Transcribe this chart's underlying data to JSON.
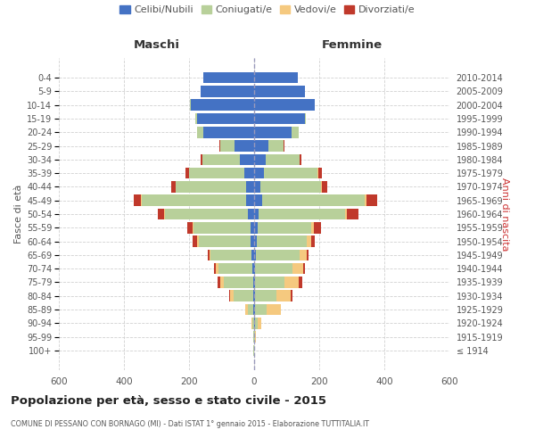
{
  "age_groups": [
    "100+",
    "95-99",
    "90-94",
    "85-89",
    "80-84",
    "75-79",
    "70-74",
    "65-69",
    "60-64",
    "55-59",
    "50-54",
    "45-49",
    "40-44",
    "35-39",
    "30-34",
    "25-29",
    "20-24",
    "15-19",
    "10-14",
    "5-9",
    "0-4"
  ],
  "birth_years": [
    "≤ 1914",
    "1915-1919",
    "1920-1924",
    "1925-1929",
    "1930-1934",
    "1935-1939",
    "1940-1944",
    "1945-1949",
    "1950-1954",
    "1955-1959",
    "1960-1964",
    "1965-1969",
    "1970-1974",
    "1975-1979",
    "1980-1984",
    "1985-1989",
    "1990-1994",
    "1995-1999",
    "2000-2004",
    "2005-2009",
    "2010-2014"
  ],
  "males": {
    "celibi": [
      1,
      1,
      1,
      2,
      3,
      4,
      5,
      8,
      10,
      12,
      20,
      25,
      25,
      30,
      45,
      60,
      155,
      175,
      195,
      165,
      155
    ],
    "coniugati": [
      1,
      2,
      5,
      18,
      60,
      90,
      105,
      125,
      160,
      175,
      255,
      320,
      215,
      170,
      115,
      45,
      20,
      5,
      2,
      0,
      0
    ],
    "vedovi": [
      0,
      0,
      2,
      8,
      10,
      10,
      8,
      5,
      4,
      3,
      2,
      2,
      1,
      0,
      0,
      0,
      0,
      0,
      0,
      0,
      0
    ],
    "divorziati": [
      0,
      0,
      0,
      0,
      5,
      8,
      5,
      5,
      15,
      15,
      20,
      22,
      15,
      10,
      5,
      2,
      0,
      0,
      0,
      0,
      0
    ]
  },
  "females": {
    "nubili": [
      1,
      1,
      2,
      2,
      3,
      3,
      4,
      5,
      8,
      10,
      15,
      25,
      20,
      30,
      35,
      45,
      115,
      155,
      185,
      155,
      135
    ],
    "coniugate": [
      0,
      2,
      8,
      35,
      65,
      90,
      115,
      135,
      155,
      165,
      265,
      315,
      185,
      165,
      105,
      45,
      22,
      5,
      2,
      0,
      0
    ],
    "vedove": [
      0,
      2,
      12,
      45,
      45,
      45,
      32,
      22,
      12,
      8,
      6,
      5,
      3,
      1,
      0,
      0,
      0,
      0,
      0,
      0,
      0
    ],
    "divorziate": [
      0,
      0,
      0,
      0,
      6,
      10,
      6,
      6,
      12,
      22,
      35,
      32,
      18,
      12,
      5,
      2,
      0,
      0,
      0,
      0,
      0
    ]
  },
  "colors": {
    "celibi": "#4472c4",
    "coniugati": "#b8d09a",
    "vedovi": "#f5c97f",
    "divorziati": "#c0392b"
  },
  "xlim": 600,
  "xticks": [
    -600,
    -400,
    -200,
    0,
    200,
    400,
    600
  ],
  "title": "Popolazione per età, sesso e stato civile - 2015",
  "subtitle": "COMUNE DI PESSANO CON BORNAGO (MI) - Dati ISTAT 1° gennaio 2015 - Elaborazione TUTTITALIA.IT",
  "ylabel_left": "Fasce di età",
  "ylabel_right": "Anni di nascita",
  "label_maschi": "Maschi",
  "label_femmine": "Femmine",
  "legend_labels": [
    "Celibi/Nubili",
    "Coniugati/e",
    "Vedovi/e",
    "Divorziati/e"
  ],
  "bg_color": "#ffffff",
  "grid_color": "#cccccc",
  "text_color": "#555555",
  "bar_height": 0.82
}
